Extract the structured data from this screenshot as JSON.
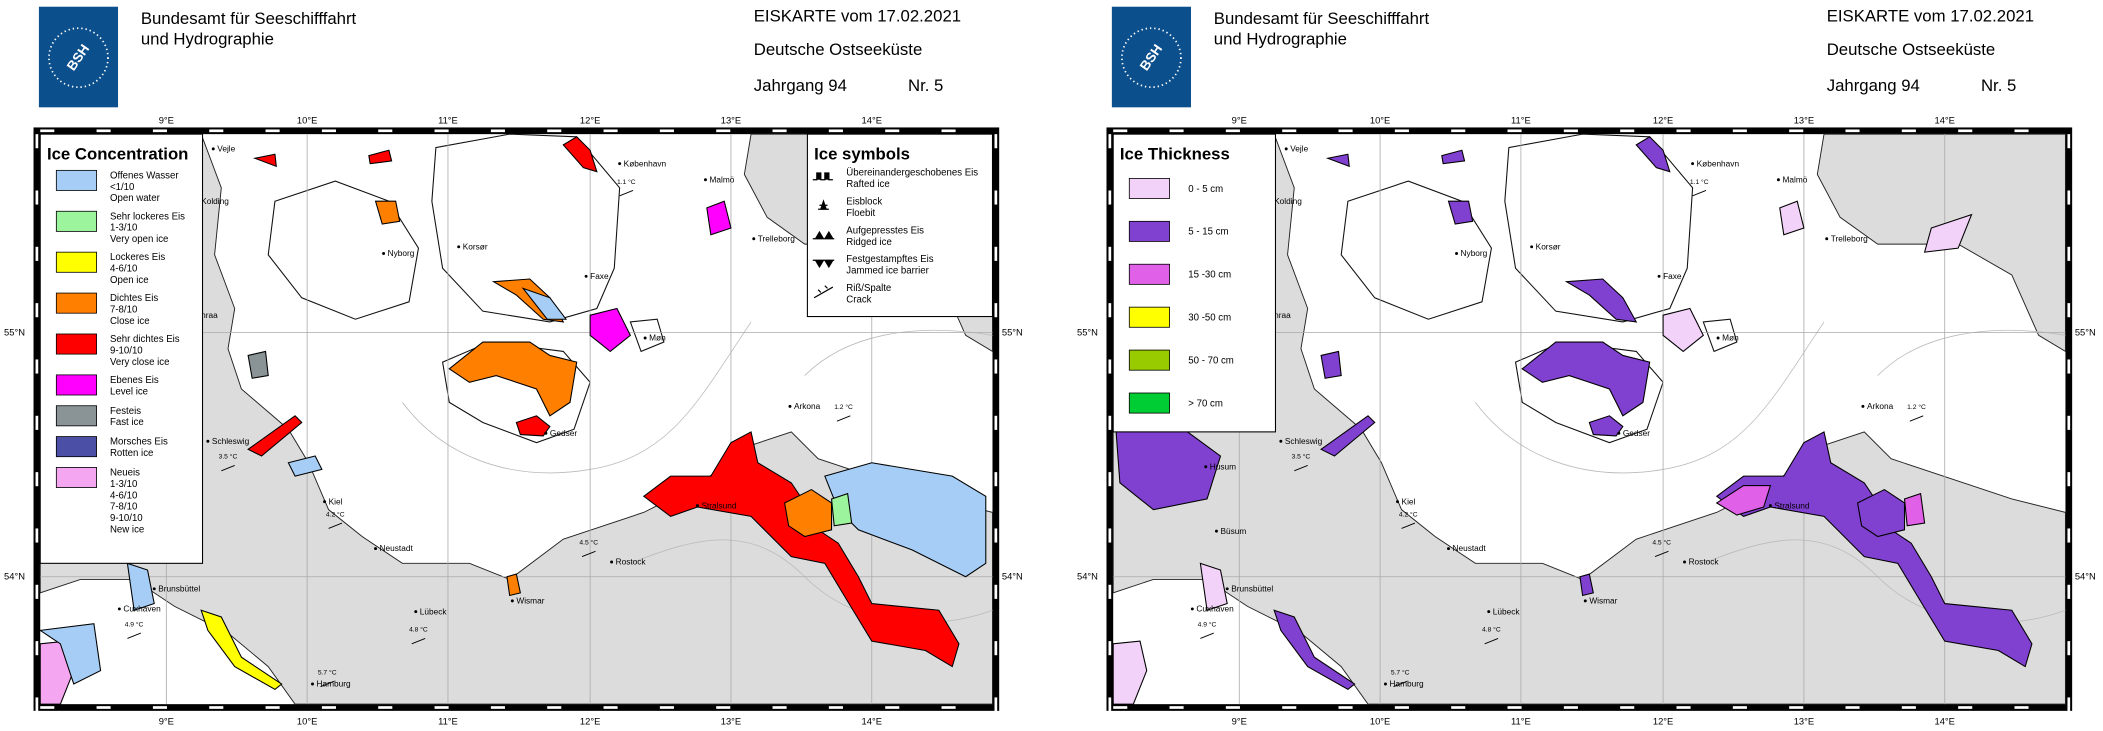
{
  "header": {
    "agency": [
      "Bundesamt für Seeschifffahrt",
      "und Hydrographie"
    ],
    "logo": "BSH",
    "title": "EISKARTE vom 17.02.2021",
    "region": "Deutsche Ostseeküste",
    "volume": "Jahrgang 94",
    "number": "Nr. 5"
  },
  "lon_labels": [
    "9°E",
    "10°E",
    "11°E",
    "12°E",
    "13°E",
    "14°E"
  ],
  "lat_labels": [
    "55°N",
    "54°N"
  ],
  "places": [
    "Vejle",
    "Kolding",
    "Nyborg",
    "Korsør",
    "København",
    "Malmö",
    "Trelleborg",
    "Faxe",
    "Møn",
    "Gedser",
    "Arkona",
    "Schleswig",
    "Kiel",
    "Neustadt",
    "Rostock",
    "Stralsund",
    "Wismar",
    "Lübeck",
    "Brunsbüttel",
    "Cuxhaven",
    "Hamburg",
    "nraa"
  ],
  "temperatures": [
    "1.1 °C",
    "1.2 °C",
    "3.5 °C",
    "4.2 °C",
    "4.5 °C",
    "4.9 °C",
    "4.8 °C",
    "5.7 °C"
  ],
  "panels": [
    {
      "legend": {
        "title": "Ice Concentration",
        "items": [
          {
            "color": "#a6cdf5",
            "lines": [
              "Offenes Wasser",
              "<1/10",
              "Open water"
            ]
          },
          {
            "color": "#9cf59c",
            "lines": [
              "Sehr lockeres Eis",
              "1-3/10",
              "Very open ice"
            ]
          },
          {
            "color": "#ffff00",
            "lines": [
              "Lockeres Eis",
              "4-6/10",
              "Open ice"
            ]
          },
          {
            "color": "#ff8000",
            "lines": [
              "Dichtes Eis",
              "7-8/10",
              "Close ice"
            ]
          },
          {
            "color": "#ff0000",
            "lines": [
              "Sehr dichtes Eis",
              "9-10/10",
              "Very close ice"
            ]
          },
          {
            "color": "#ff00ff",
            "lines": [
              "Ebenes Eis",
              "Level ice"
            ]
          },
          {
            "color": "#8a9396",
            "lines": [
              "Festeis",
              "Fast ice"
            ]
          },
          {
            "color": "#4b4fa5",
            "lines": [
              "Morsches Eis",
              "Rotten ice"
            ]
          },
          {
            "color": "#f4a6f0",
            "lines": [
              "Neueis",
              "1-3/10",
              "4-6/10",
              "7-8/10",
              "9-10/10",
              "New ice"
            ]
          }
        ]
      },
      "symbols": {
        "title": "Ice symbols",
        "items": [
          [
            "Übereinandergeschobenes Eis",
            "Rafted ice"
          ],
          [
            "Eisblock",
            "Floebit"
          ],
          [
            "Aufgepresstes Eis",
            "Ridged ice"
          ],
          [
            "Festgestampftes Eis",
            "Jammed ice barrier"
          ],
          [
            "Riß/Spalte",
            "Crack"
          ]
        ]
      }
    },
    {
      "legend": {
        "title": "Ice Thickness",
        "items": [
          {
            "color": "#f2d2f8",
            "lines": [
              "0 - 5 cm"
            ]
          },
          {
            "color": "#8040d0",
            "lines": [
              "5 - 15 cm"
            ]
          },
          {
            "color": "#e060e8",
            "lines": [
              "15 -30 cm"
            ]
          },
          {
            "color": "#ffff00",
            "lines": [
              "30 -50 cm"
            ]
          },
          {
            "color": "#99cc00",
            "lines": [
              "50 - 70 cm"
            ]
          },
          {
            "color": "#00cc33",
            "lines": [
              "> 70 cm"
            ]
          }
        ]
      },
      "extra_places": [
        "Husum",
        "Büsum"
      ]
    }
  ]
}
